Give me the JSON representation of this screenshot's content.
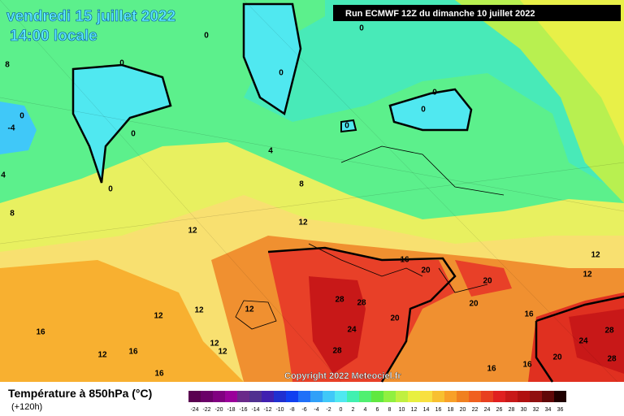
{
  "header": {
    "date": "vendredi 15 juillet 2022",
    "time": "14:00 locale",
    "run": "Run ECMWF 12Z du dimanche 10 juillet 2022"
  },
  "copyright": "Copyright 2022 Meteociel.fr",
  "footer": {
    "title": "Température à 850hPa (°C)",
    "lead": "(+120h)"
  },
  "legend": {
    "values": [
      -24,
      -22,
      -20,
      -18,
      -16,
      -14,
      -12,
      -10,
      -8,
      -6,
      -4,
      -2,
      0,
      2,
      4,
      6,
      8,
      10,
      12,
      14,
      16,
      18,
      20,
      22,
      24,
      26,
      28,
      30,
      32,
      34,
      36
    ],
    "colors": [
      "#5a0050",
      "#6a0068",
      "#800080",
      "#9a009a",
      "#6a2a8a",
      "#503090",
      "#4020b0",
      "#2030d0",
      "#1040f0",
      "#2070f8",
      "#30a0f8",
      "#40c8f8",
      "#50e8f0",
      "#40f0b0",
      "#50f070",
      "#60e840",
      "#90f040",
      "#c0f040",
      "#e8f040",
      "#f8e040",
      "#f8c030",
      "#f8a028",
      "#f08020",
      "#f06020",
      "#e84020",
      "#e02020",
      "#c81818",
      "#b01010",
      "#901010",
      "#600808",
      "#200000"
    ]
  },
  "contour_labels": [
    0,
    0,
    8,
    0,
    0,
    0,
    -4,
    0,
    0,
    0,
    0,
    0,
    4,
    4,
    8,
    8,
    12,
    12,
    12,
    16,
    20,
    12,
    20,
    28,
    28,
    12,
    12,
    12,
    20,
    20,
    16,
    28,
    16,
    24,
    24,
    12,
    12,
    12,
    16,
    28,
    20,
    28,
    16,
    16,
    16
  ]
}
